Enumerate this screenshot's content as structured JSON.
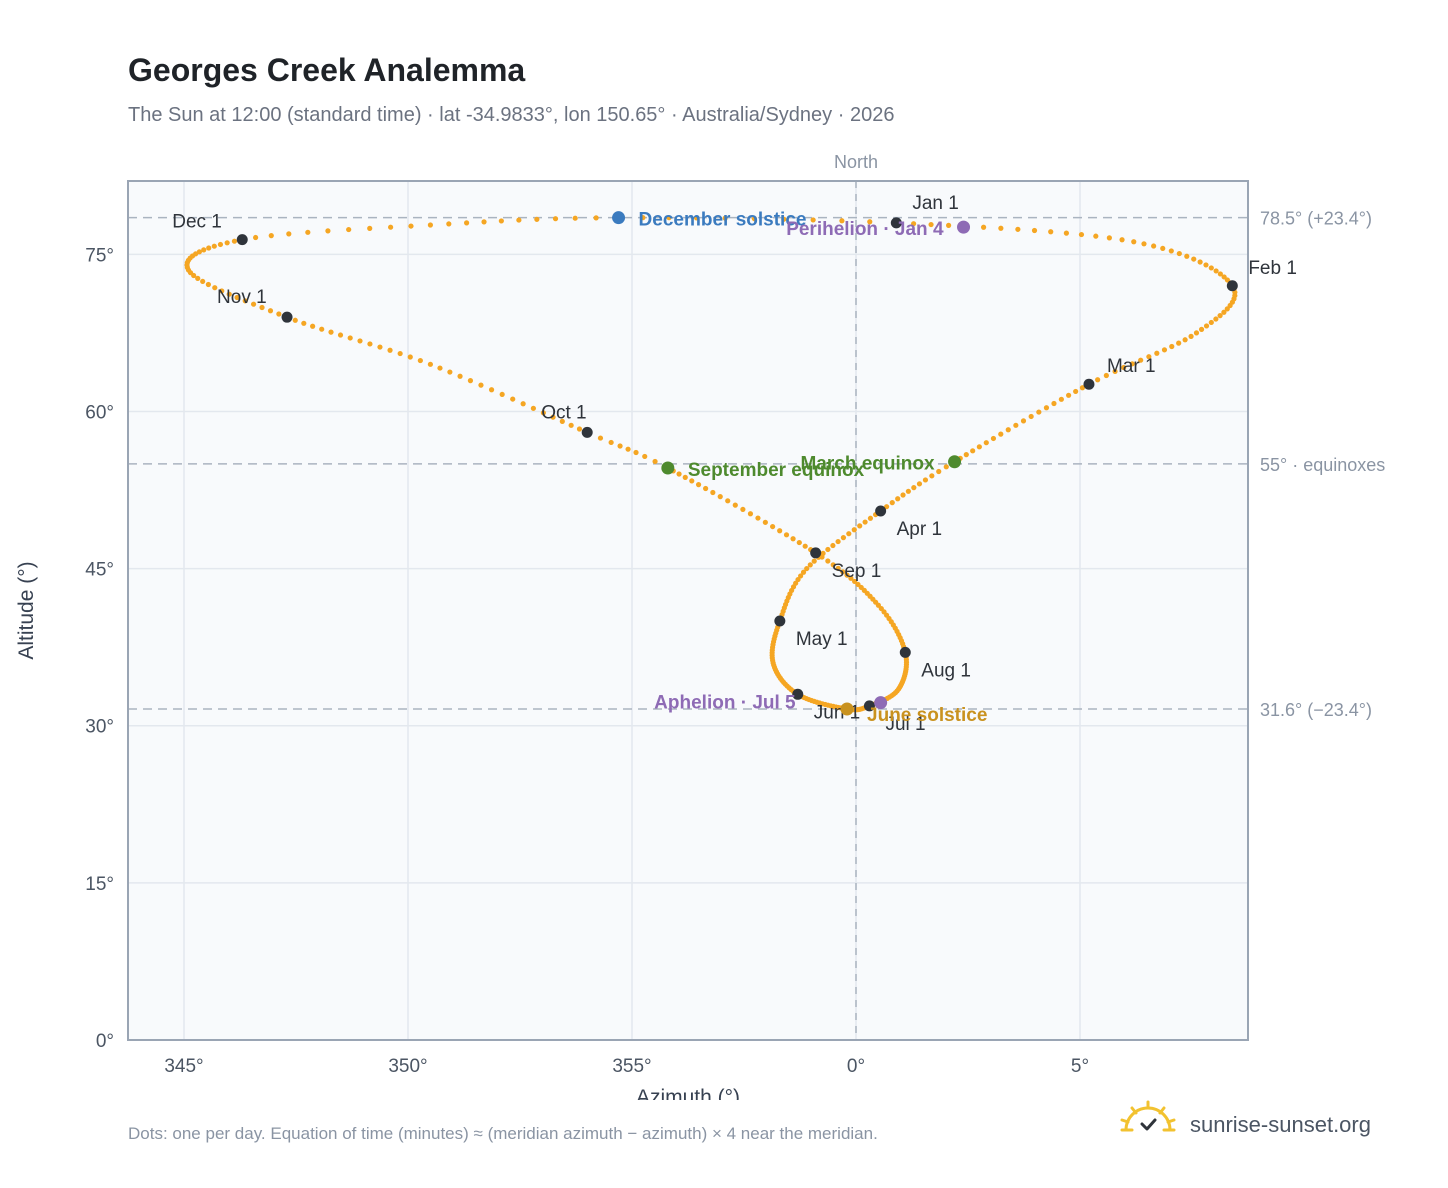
{
  "header": {
    "title": "Georges Creek Analemma",
    "subtitle": "The Sun at 12:00 (standard time) · lat -34.9833°, lon 150.65° · Australia/Sydney · 2026"
  },
  "footer": {
    "note": "Dots: one per day. Equation of time (minutes) ≈ (meridian azimuth − azimuth) × 4 near the meridian.",
    "brand": "sunrise-sunset.org"
  },
  "colors": {
    "path": "#f5a623",
    "month_marker": "#2f343b",
    "december_solstice": "#3b7bbf",
    "june_solstice": "#c9921f",
    "equinox": "#4e8a2e",
    "apsis": "#8e6bb5",
    "plot_bg": "#f8fafc",
    "grid": "#e3e8ee",
    "frame": "#9aa5b4",
    "reference": "#aab4c0"
  },
  "chart_data": {
    "type": "scatter",
    "xlabel": "Azimuth (°)",
    "ylabel": "Altitude (°)",
    "xlim": [
      -15,
      10
    ],
    "ylim": [
      0,
      82
    ],
    "x_ticks": [
      {
        "value": -15,
        "label": "345°"
      },
      {
        "value": -10,
        "label": "350°"
      },
      {
        "value": -5,
        "label": "355°"
      },
      {
        "value": 0,
        "label": "0°"
      },
      {
        "value": 5,
        "label": "5°"
      }
    ],
    "y_ticks": [
      {
        "value": 0,
        "label": "0°"
      },
      {
        "value": 15,
        "label": "15°"
      },
      {
        "value": 30,
        "label": "30°"
      },
      {
        "value": 45,
        "label": "45°"
      },
      {
        "value": 60,
        "label": "60°"
      },
      {
        "value": 75,
        "label": "75°"
      }
    ],
    "meridian": {
      "x": 0,
      "label": "North"
    },
    "reference_lines": [
      {
        "y": 78.5,
        "label": "78.5° (+23.4°)"
      },
      {
        "y": 55,
        "label": "55° · equinoxes"
      },
      {
        "y": 31.6,
        "label": "31.6° (−23.4°)"
      }
    ],
    "path_anchors": [
      {
        "day": 1,
        "az": 0.9,
        "alt": 78.0
      },
      {
        "day": 16,
        "az": 6.2,
        "alt": 76.2
      },
      {
        "day": 32,
        "az": 8.4,
        "alt": 72.0
      },
      {
        "day": 46,
        "az": 7.6,
        "alt": 67.5
      },
      {
        "day": 60,
        "az": 5.2,
        "alt": 62.6
      },
      {
        "day": 79,
        "az": 2.2,
        "alt": 55.2
      },
      {
        "day": 91,
        "az": 0.55,
        "alt": 50.5
      },
      {
        "day": 106,
        "az": -1.1,
        "alt": 45.0
      },
      {
        "day": 121,
        "az": -1.7,
        "alt": 40.0
      },
      {
        "day": 136,
        "az": -1.85,
        "alt": 36.0
      },
      {
        "day": 152,
        "az": -1.3,
        "alt": 33.0
      },
      {
        "day": 172,
        "az": -0.2,
        "alt": 31.6
      },
      {
        "day": 182,
        "az": 0.3,
        "alt": 31.9
      },
      {
        "day": 196,
        "az": 0.95,
        "alt": 33.5
      },
      {
        "day": 213,
        "az": 1.1,
        "alt": 37.0
      },
      {
        "day": 228,
        "az": 0.5,
        "alt": 41.5
      },
      {
        "day": 244,
        "az": -0.9,
        "alt": 46.5
      },
      {
        "day": 266,
        "az": -4.2,
        "alt": 54.6
      },
      {
        "day": 274,
        "az": -6.0,
        "alt": 58.0
      },
      {
        "day": 290,
        "az": -9.5,
        "alt": 64.5
      },
      {
        "day": 305,
        "az": -12.7,
        "alt": 69.0
      },
      {
        "day": 320,
        "az": -14.9,
        "alt": 73.5
      },
      {
        "day": 335,
        "az": -13.7,
        "alt": 76.4
      },
      {
        "day": 345,
        "az": -9.5,
        "alt": 77.8
      },
      {
        "day": 355,
        "az": -5.3,
        "alt": 78.5
      },
      {
        "day": 365,
        "az": 0.9,
        "alt": 78.0
      }
    ],
    "month_markers": [
      {
        "label": "Jan 1",
        "az": 0.9,
        "alt": 78.0
      },
      {
        "label": "Feb 1",
        "az": 8.4,
        "alt": 72.0
      },
      {
        "label": "Mar 1",
        "az": 5.2,
        "alt": 62.6
      },
      {
        "label": "Apr 1",
        "az": 0.55,
        "alt": 50.5
      },
      {
        "label": "May 1",
        "az": -1.7,
        "alt": 40.0
      },
      {
        "label": "Jun 1",
        "az": -1.3,
        "alt": 33.0
      },
      {
        "label": "Jul 1",
        "az": 0.3,
        "alt": 31.9
      },
      {
        "label": "Aug 1",
        "az": 1.1,
        "alt": 37.0
      },
      {
        "label": "Sep 1",
        "az": -0.9,
        "alt": 46.5
      },
      {
        "label": "Oct 1",
        "az": -6.0,
        "alt": 58.0
      },
      {
        "label": "Nov 1",
        "az": -12.7,
        "alt": 69.0
      },
      {
        "label": "Dec 1",
        "az": -13.7,
        "alt": 76.4
      }
    ],
    "events": [
      {
        "label": "December solstice",
        "az": -5.3,
        "alt": 78.5,
        "color": "#3b7bbf"
      },
      {
        "label": "Perihelion · Jan 4",
        "az": 2.4,
        "alt": 77.6,
        "color": "#8e6bb5"
      },
      {
        "label": "March equinox",
        "az": 2.2,
        "alt": 55.2,
        "color": "#4e8a2e"
      },
      {
        "label": "September equinox",
        "az": -4.2,
        "alt": 54.6,
        "color": "#4e8a2e"
      },
      {
        "label": "June solstice",
        "az": -0.2,
        "alt": 31.6,
        "color": "#c9921f"
      },
      {
        "label": "Aphelion · Jul 5",
        "az": 0.55,
        "alt": 32.2,
        "color": "#8e6bb5"
      }
    ]
  }
}
